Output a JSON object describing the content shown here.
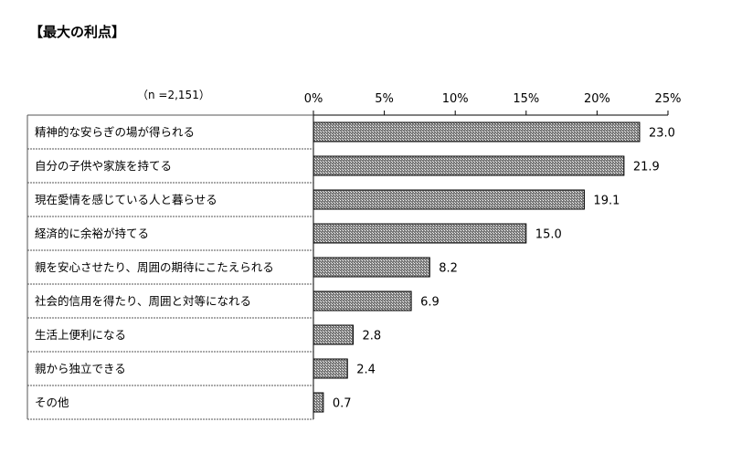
{
  "chart_data": {
    "type": "bar",
    "orientation": "horizontal",
    "title": "【最大の利点】",
    "sample_size_label": "（n =2,151）",
    "xlim": [
      0,
      25
    ],
    "tick_values": [
      0,
      5,
      10,
      15,
      20,
      25
    ],
    "tick_labels": [
      "0%",
      "5%",
      "10%",
      "15%",
      "20%",
      "25%"
    ],
    "xaxis_position": "top",
    "grid": false,
    "legend": "none",
    "categories": [
      "精神的な安らぎの場が得られる",
      "自分の子供や家族を持てる",
      "現在愛情を感じている人と暮らせる",
      "経済的に余裕が持てる",
      "親を安心させたり、周囲の期待にこたえられる",
      "社会的信用を得たり、周囲と対等になれる",
      "生活上便利になる",
      "親から独立できる",
      "その他"
    ],
    "values": [
      23.0,
      21.9,
      19.1,
      15.0,
      8.2,
      6.9,
      2.8,
      2.4,
      0.7
    ],
    "value_labels": [
      "23.0",
      "21.9",
      "19.1",
      "15.0",
      "8.2",
      "6.9",
      "2.8",
      "2.4",
      "0.7"
    ],
    "colors": {
      "bar_fill": "#7a7a7a",
      "bar_stroke": "#000000",
      "hatch_light": "#ffffff",
      "axis": "#000000",
      "separator": "#555555"
    }
  }
}
